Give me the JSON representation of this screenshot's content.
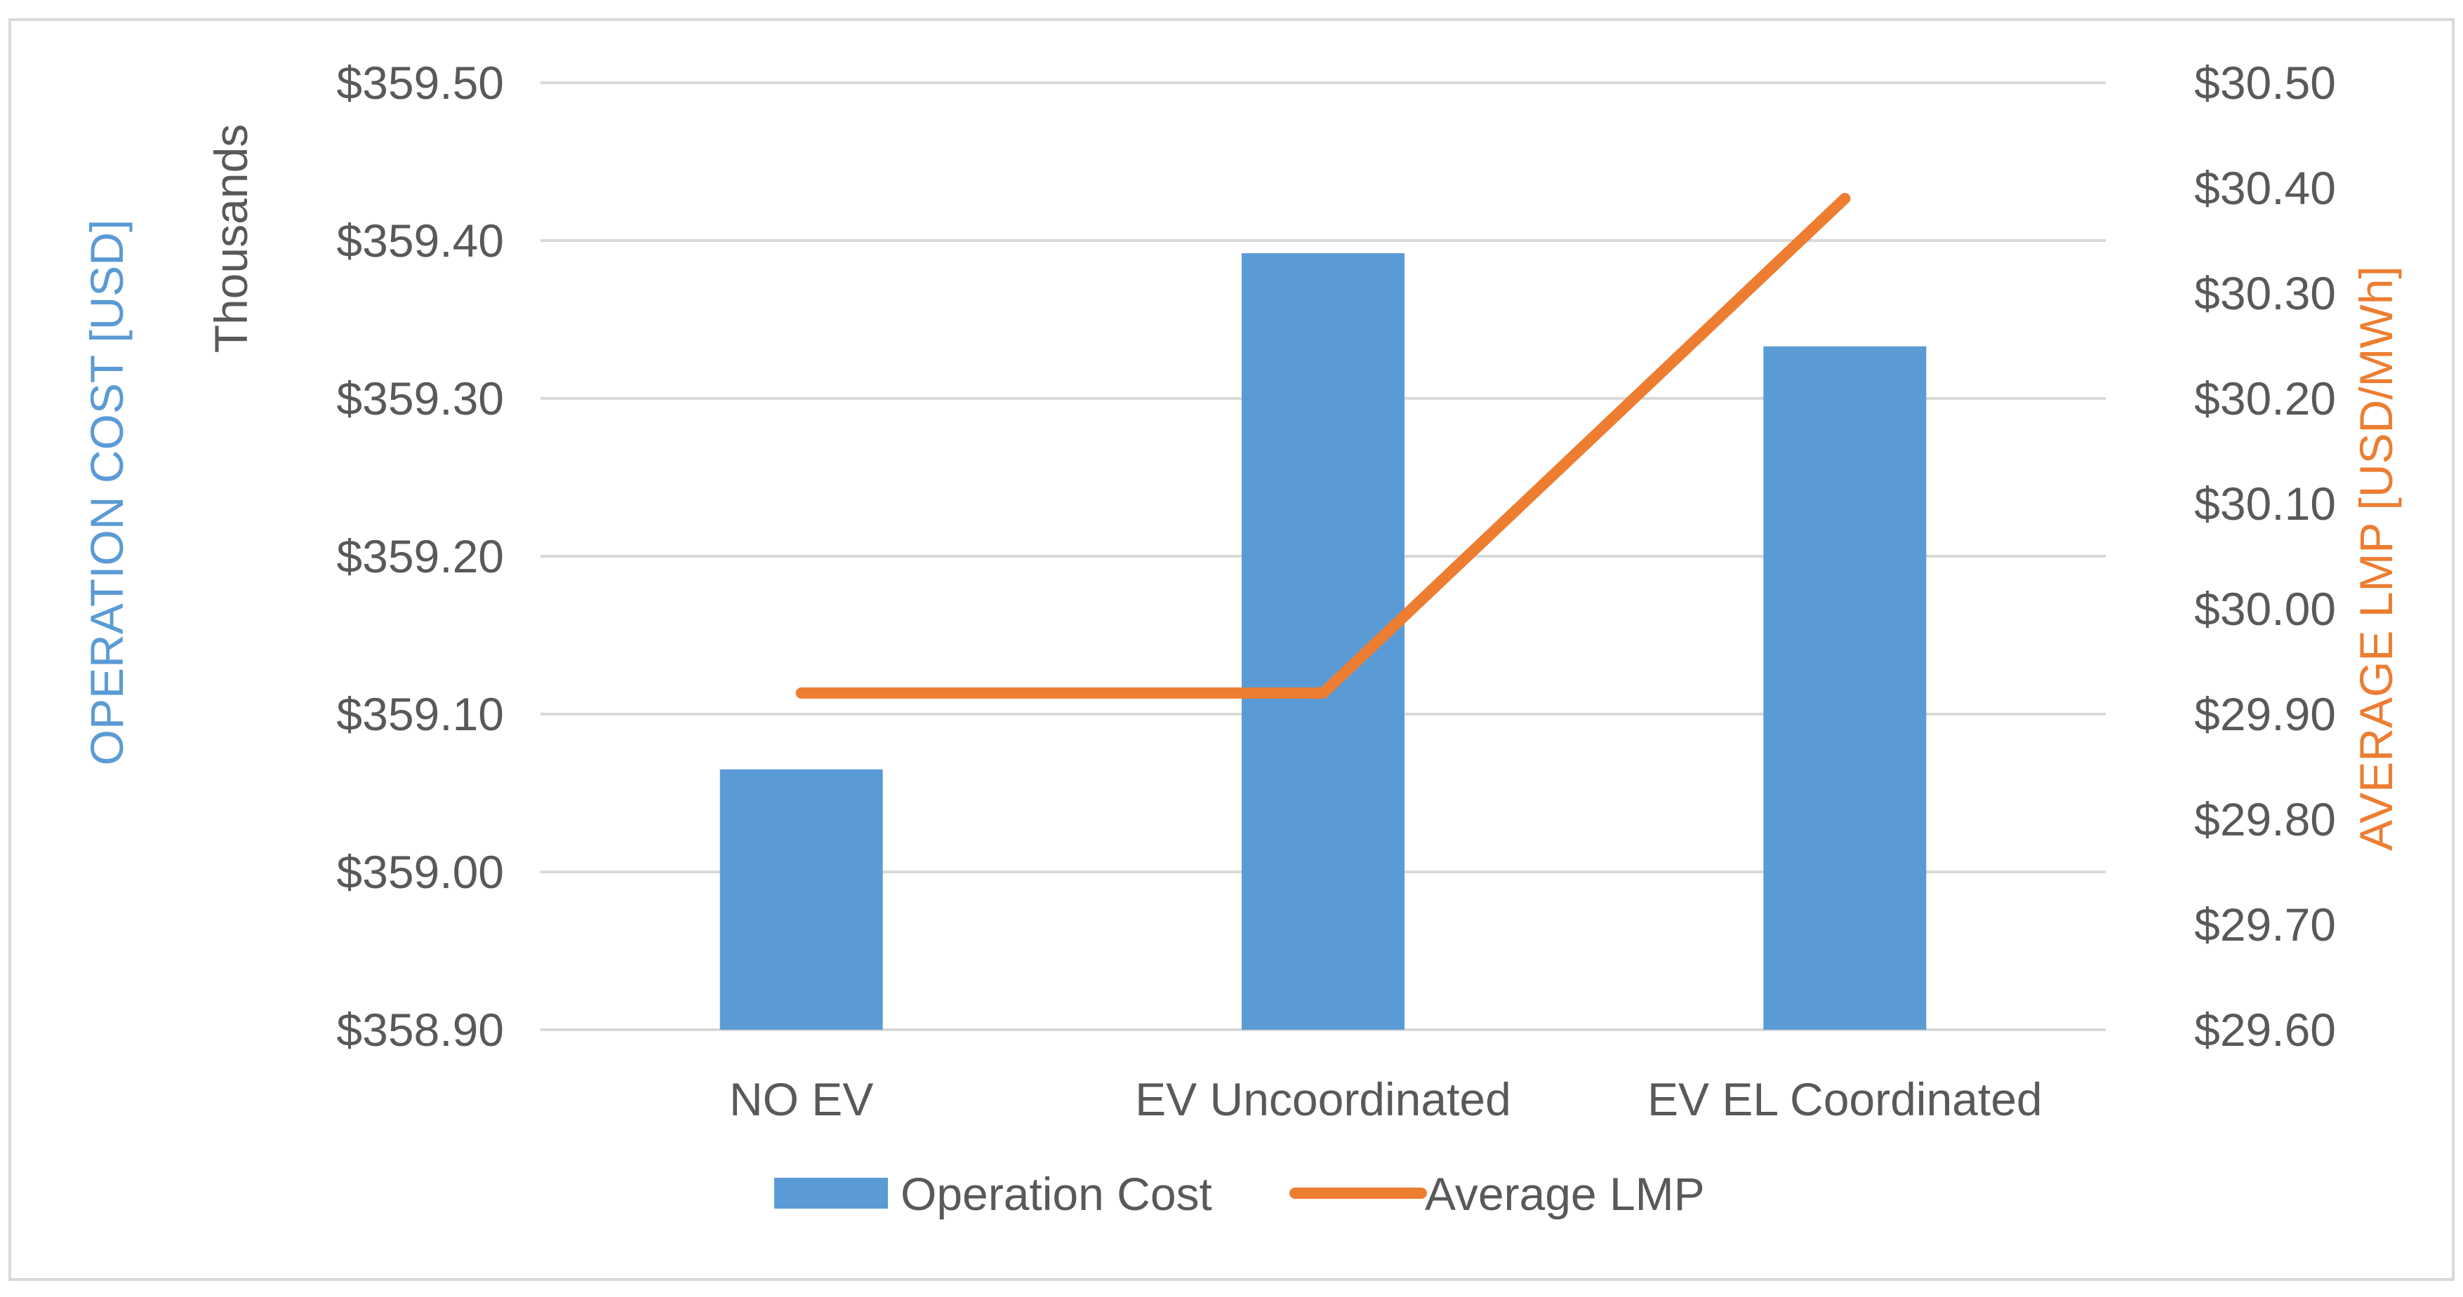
{
  "chart_data": {
    "type": "bar",
    "categories": [
      "NO EV",
      "EV Uncoordinated",
      "EV EL Coordinated"
    ],
    "series": [
      {
        "name": "Operation Cost",
        "type": "bar",
        "axis": "left",
        "color": "#5b9bd5",
        "values": [
          359.065,
          359.392,
          359.333
        ]
      },
      {
        "name": "Average LMP",
        "type": "line",
        "axis": "right",
        "color": "#ed7d31",
        "values": [
          29.92,
          29.92,
          30.39
        ]
      }
    ],
    "y_left": {
      "label": "OPERATION COST [USD]",
      "unit_label": "Thousands",
      "range": [
        358.9,
        359.5
      ],
      "ticks": [
        "$358.90",
        "$359.00",
        "$359.10",
        "$359.20",
        "$359.30",
        "$359.40",
        "$359.50"
      ],
      "label_color": "#5b9bd5"
    },
    "y_right": {
      "label": "AVERAGE LMP [USD/MWh]",
      "range": [
        29.6,
        30.5
      ],
      "ticks": [
        "$29.60",
        "$29.70",
        "$29.80",
        "$29.90",
        "$30.00",
        "$30.10",
        "$30.20",
        "$30.30",
        "$30.40",
        "$30.50"
      ],
      "label_color": "#ed7d31"
    },
    "grid": true,
    "legend_position": "bottom"
  }
}
